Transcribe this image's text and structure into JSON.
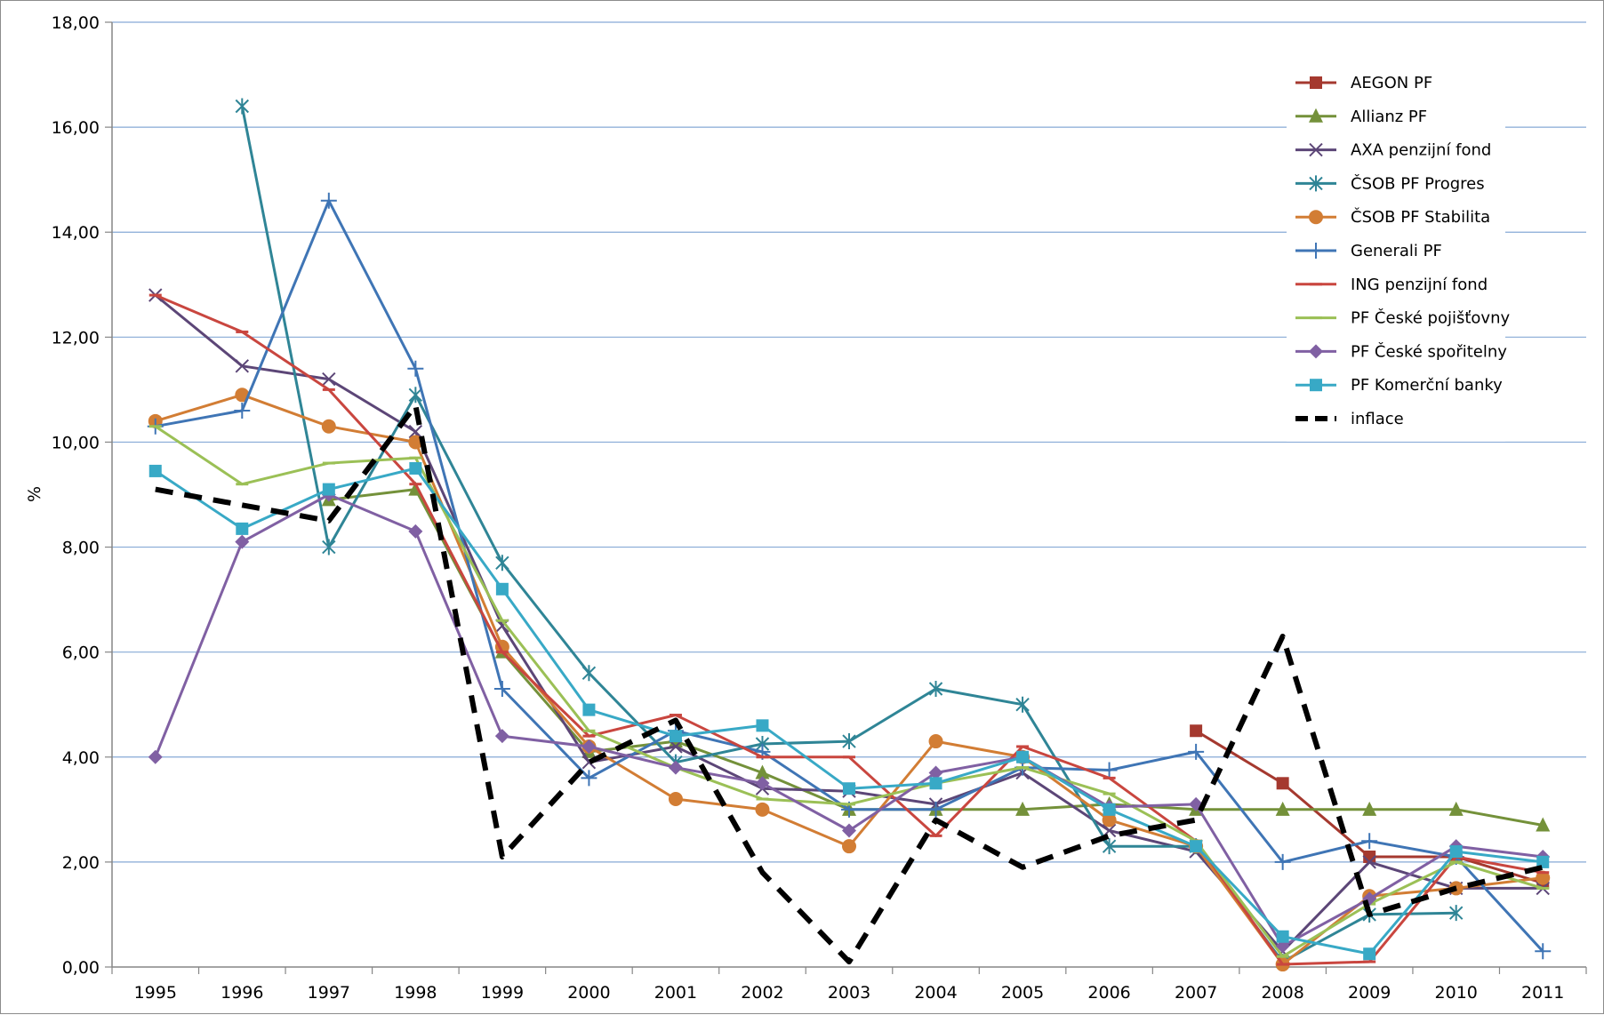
{
  "chart_data": {
    "type": "line",
    "title": "",
    "xlabel": "",
    "ylabel": "%",
    "ylim": [
      0,
      18
    ],
    "y_ticks": [
      "0,00",
      "2,00",
      "4,00",
      "6,00",
      "8,00",
      "10,00",
      "12,00",
      "14,00",
      "16,00",
      "18,00"
    ],
    "y_tick_values": [
      0,
      2,
      4,
      6,
      8,
      10,
      12,
      14,
      16,
      18
    ],
    "categories": [
      "1995",
      "1996",
      "1997",
      "1998",
      "1999",
      "2000",
      "2001",
      "2002",
      "2003",
      "2004",
      "2005",
      "2006",
      "2007",
      "2008",
      "2009",
      "2010",
      "2011"
    ],
    "grid": "horizontal",
    "legend_position": "top-right",
    "series": [
      {
        "name": "AEGON PF",
        "color": "#a5392f",
        "marker": "square",
        "values": [
          null,
          null,
          null,
          null,
          null,
          null,
          null,
          null,
          null,
          null,
          null,
          null,
          4.5,
          3.5,
          2.1,
          2.1,
          1.6
        ]
      },
      {
        "name": "Allianz PF",
        "color": "#74913a",
        "marker": "triangle",
        "values": [
          null,
          null,
          8.9,
          9.1,
          6.0,
          4.1,
          4.3,
          3.7,
          3.0,
          3.0,
          3.0,
          3.1,
          3.0,
          3.0,
          3.0,
          3.0,
          2.7
        ]
      },
      {
        "name": "AXA penzijní fond",
        "color": "#5c4677",
        "marker": "x",
        "values": [
          12.8,
          11.45,
          11.2,
          10.2,
          6.5,
          3.9,
          4.2,
          3.4,
          3.35,
          3.1,
          3.7,
          2.6,
          2.2,
          0.3,
          2.0,
          1.5,
          1.5
        ]
      },
      {
        "name": "ČSOB PF Progres",
        "color": "#2f8596",
        "marker": "star",
        "values": [
          null,
          16.4,
          8.0,
          10.9,
          7.7,
          5.6,
          3.9,
          4.25,
          4.3,
          5.3,
          5.0,
          2.3,
          2.3,
          0.1,
          1.0,
          1.03,
          null
        ]
      },
      {
        "name": "ČSOB PF Stabilita",
        "color": "#d27d34",
        "marker": "circle",
        "values": [
          10.4,
          10.9,
          10.3,
          10.0,
          6.1,
          4.2,
          3.2,
          3.0,
          2.3,
          4.3,
          4.0,
          2.8,
          2.3,
          0.05,
          1.35,
          1.5,
          1.7
        ]
      },
      {
        "name": "Generali PF",
        "color": "#3f75b5",
        "marker": "plus",
        "values": [
          10.3,
          10.6,
          14.6,
          11.4,
          5.3,
          3.6,
          4.5,
          4.1,
          3.0,
          3.0,
          3.8,
          3.75,
          4.1,
          2.0,
          2.4,
          2.1,
          0.3
        ]
      },
      {
        "name": "ING penzijní fond",
        "color": "#c9463f",
        "marker": "dash",
        "values": [
          12.8,
          12.1,
          11.0,
          9.2,
          6.0,
          4.4,
          4.8,
          4.0,
          4.0,
          2.5,
          4.2,
          3.6,
          2.4,
          0.05,
          0.1,
          2.1,
          1.8
        ]
      },
      {
        "name": "PF České pojišťovny",
        "color": "#9bc056",
        "marker": "dash",
        "values": [
          10.3,
          9.2,
          9.6,
          9.7,
          6.6,
          4.5,
          3.8,
          3.2,
          3.1,
          3.5,
          3.8,
          3.3,
          2.4,
          0.2,
          1.2,
          2.0,
          1.5
        ]
      },
      {
        "name": "PF České spořitelny",
        "color": "#8060a3",
        "marker": "diamond",
        "values": [
          4.0,
          8.1,
          9.0,
          8.3,
          4.4,
          4.2,
          3.8,
          3.5,
          2.6,
          3.7,
          4.0,
          3.05,
          3.1,
          0.4,
          1.3,
          2.3,
          2.1
        ]
      },
      {
        "name": "PF Komerční banky",
        "color": "#38a9c6",
        "marker": "square",
        "values": [
          9.45,
          8.35,
          9.1,
          9.5,
          7.2,
          4.9,
          4.4,
          4.6,
          3.4,
          3.5,
          4.0,
          3.0,
          2.3,
          0.58,
          0.25,
          2.2,
          2.0
        ]
      },
      {
        "name": "inflace",
        "color": "#000000",
        "marker": "none",
        "dashed": true,
        "values": [
          9.1,
          8.8,
          8.5,
          10.7,
          2.1,
          3.9,
          4.7,
          1.8,
          0.1,
          2.8,
          1.9,
          2.5,
          2.8,
          6.3,
          1.0,
          1.5,
          1.9
        ]
      }
    ]
  }
}
